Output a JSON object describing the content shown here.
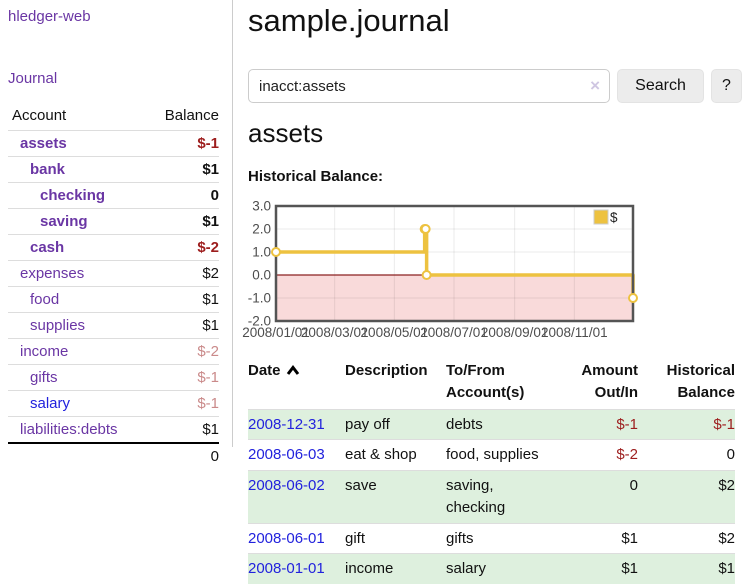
{
  "colors": {
    "link_purple": "#6a36a4",
    "link_blue": "#2222dd",
    "negative_strong": "#9d1d1d",
    "negative_faded": "#ca8a8a",
    "row_green": "#def0de",
    "chart_series": "#edc240",
    "chart_negative_region": "#f9dada",
    "chart_zero_line": "#8b2020"
  },
  "sidebar": {
    "brand": "hledger-web",
    "journal_link": "Journal",
    "accounts_table": {
      "account_header": "Account",
      "balance_header": "Balance",
      "rows": [
        {
          "name": "assets",
          "level": 0,
          "bold": true,
          "link": "purple",
          "balance": "$-1",
          "balance_class": "amt-neg"
        },
        {
          "name": "bank",
          "level": 1,
          "bold": true,
          "link": "purple",
          "balance": "$1",
          "balance_class": "amt"
        },
        {
          "name": "checking",
          "level": 2,
          "bold": true,
          "link": "purple",
          "balance": "0",
          "balance_class": "amt"
        },
        {
          "name": "saving",
          "level": 2,
          "bold": true,
          "link": "purple",
          "balance": "$1",
          "balance_class": "amt"
        },
        {
          "name": "cash",
          "level": 1,
          "bold": true,
          "link": "purple",
          "balance": "$-2",
          "balance_class": "amt-neg"
        },
        {
          "name": "expenses",
          "level": 0,
          "bold": false,
          "link": "purple",
          "balance": "$2",
          "balance_class": "amt"
        },
        {
          "name": "food",
          "level": 1,
          "bold": false,
          "link": "purple",
          "balance": "$1",
          "balance_class": "amt"
        },
        {
          "name": "supplies",
          "level": 1,
          "bold": false,
          "link": "purple",
          "balance": "$1",
          "balance_class": "amt"
        },
        {
          "name": "income",
          "level": 0,
          "bold": false,
          "link": "purple",
          "balance": "$-2",
          "balance_class": "amt-faded"
        },
        {
          "name": "gifts",
          "level": 1,
          "bold": false,
          "link": "purple",
          "balance": "$-1",
          "balance_class": "amt-faded"
        },
        {
          "name": "salary",
          "level": 1,
          "bold": false,
          "link": "blue",
          "balance": "$-1",
          "balance_class": "amt-faded"
        },
        {
          "name": "liabilities:debts",
          "level": 0,
          "bold": false,
          "link": "purple",
          "balance": "$1",
          "balance_class": "amt"
        }
      ],
      "total": "0"
    }
  },
  "main": {
    "title": "sample.journal",
    "search": {
      "value": "inacct:assets",
      "clear_icon": "×",
      "search_button": "Search",
      "help_button": "?"
    },
    "account_heading": "assets",
    "chart_heading": "Historical Balance:"
  },
  "chart_data": {
    "type": "line",
    "style": "step-after",
    "title": "Historical Balance:",
    "x_range": [
      "2008-01-01",
      "2008-12-31"
    ],
    "ylim": [
      -2,
      3
    ],
    "y_ticks": [
      3.0,
      2.0,
      1.0,
      0.0,
      -1.0,
      -2.0
    ],
    "y_tick_labels": [
      "3.0",
      "2.0",
      "1.0",
      "0.0",
      "-1.0",
      "-2.0"
    ],
    "x_ticks": [
      "2008-01-01",
      "2008-03-01",
      "2008-05-01",
      "2008-07-01",
      "2008-09-01",
      "2008-11-01"
    ],
    "x_tick_labels": [
      "2008/01/01",
      "2008/03/01",
      "2008/05/01",
      "2008/07/01",
      "2008/09/01",
      "2008/11/01"
    ],
    "grid": true,
    "legend": {
      "position": "top-right",
      "entries": [
        "$"
      ]
    },
    "series": [
      {
        "name": "$",
        "color": "#edc240",
        "points": [
          {
            "x": "2008-01-01",
            "y": 1
          },
          {
            "x": "2008-06-01",
            "y": 2
          },
          {
            "x": "2008-06-02",
            "y": 2
          },
          {
            "x": "2008-06-03",
            "y": 0
          },
          {
            "x": "2008-12-31",
            "y": -1
          }
        ]
      }
    ],
    "negative_region": {
      "from": -2,
      "to": 0,
      "color": "#f9dada"
    },
    "zero_line_color": "#8b2020"
  },
  "register": {
    "headers": [
      "Date",
      "Description",
      "To/From Account(s)",
      "Amount Out/In",
      "Historical Balance"
    ],
    "sort": {
      "column": "Date",
      "direction": "ascending"
    },
    "rows": [
      {
        "date": "2008-12-31",
        "description": "pay off",
        "accounts": "debts",
        "amount": "$-1",
        "amount_class": "amt-neg",
        "balance": "$-1",
        "balance_class": "amt-neg",
        "green": true
      },
      {
        "date": "2008-06-03",
        "description": "eat & shop",
        "accounts": "food, supplies",
        "amount": "$-2",
        "amount_class": "amt-neg",
        "balance": "0",
        "balance_class": "amt",
        "green": false
      },
      {
        "date": "2008-06-02",
        "description": "save",
        "accounts": "saving, checking",
        "amount": "0",
        "amount_class": "amt",
        "balance": "$2",
        "balance_class": "amt",
        "green": true
      },
      {
        "date": "2008-06-01",
        "description": "gift",
        "accounts": "gifts",
        "amount": "$1",
        "amount_class": "amt",
        "balance": "$2",
        "balance_class": "amt",
        "green": false
      },
      {
        "date": "2008-01-01",
        "description": "income",
        "accounts": "salary",
        "amount": "$1",
        "amount_class": "amt",
        "balance": "$1",
        "balance_class": "amt",
        "green": true
      }
    ]
  }
}
